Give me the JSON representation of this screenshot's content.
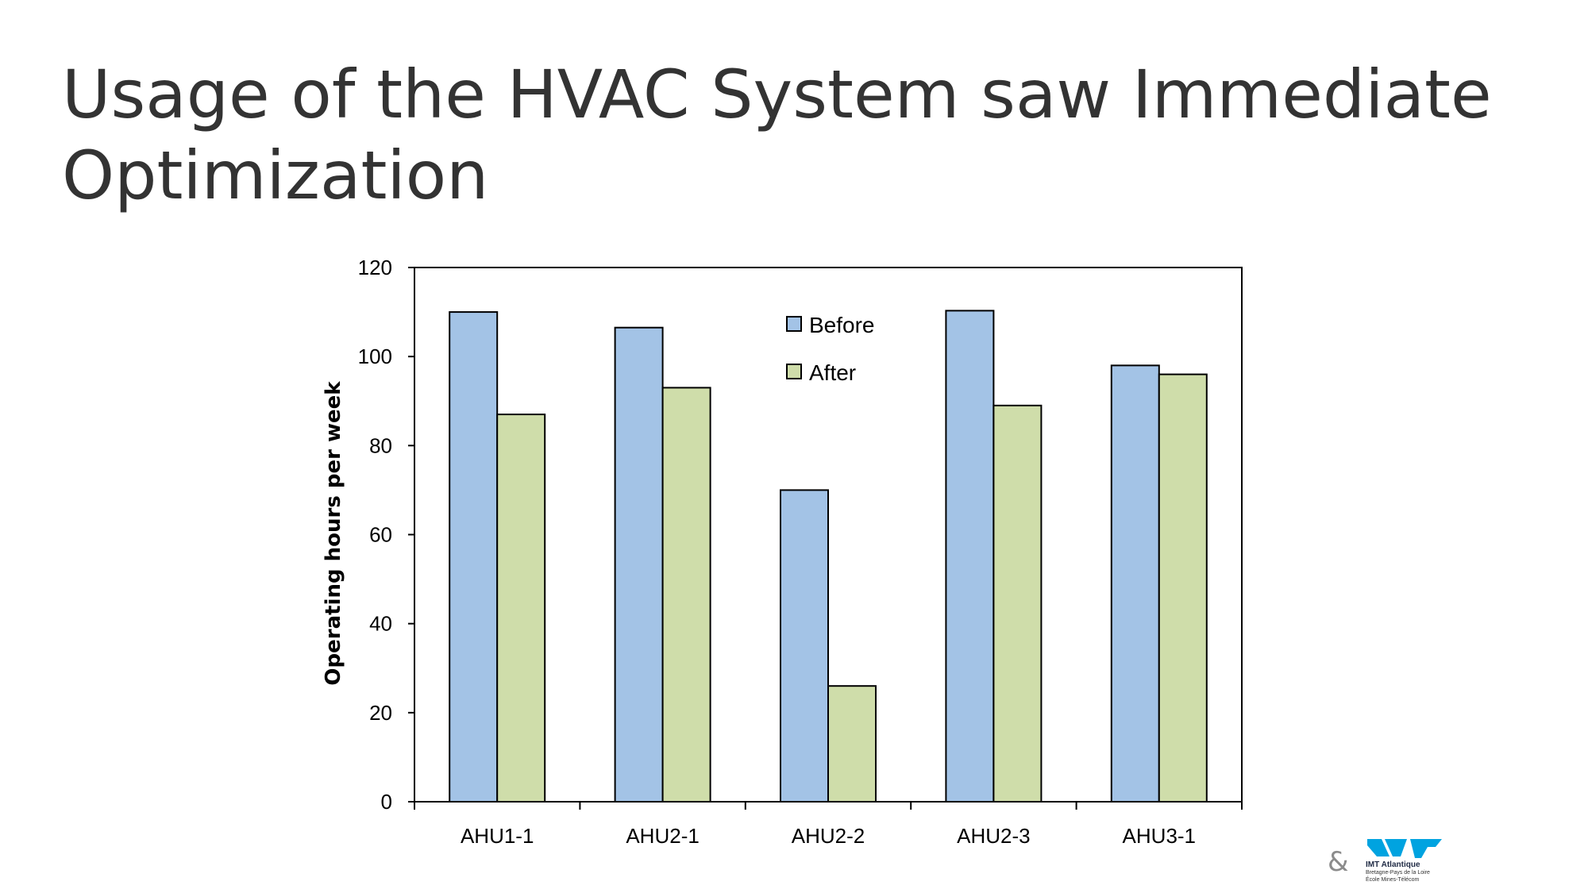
{
  "slide": {
    "title": "Usage of the HVAC System saw Immediate Optimization"
  },
  "chart_data": {
    "type": "bar",
    "categories": [
      "AHU1-1",
      "AHU2-1",
      "AHU2-2",
      "AHU2-3",
      "AHU3-1"
    ],
    "series": [
      {
        "name": "Before",
        "color": "#a3c3e6",
        "values": [
          110,
          106.5,
          70,
          110.3,
          98
        ]
      },
      {
        "name": "After",
        "color": "#cfddaa",
        "values": [
          87,
          93,
          26,
          89,
          96
        ]
      }
    ],
    "ylabel": "Operating hours per week",
    "ylim": [
      0,
      120
    ],
    "yticks": [
      0,
      20,
      40,
      60,
      80,
      100,
      120
    ],
    "grid": false,
    "legend_position": "top-center"
  },
  "footer": {
    "ampersand": "&",
    "logo": {
      "name": "IMT Atlantique",
      "line1": "Bretagne-Pays de la Loire",
      "line2": "École Mines-Télécom",
      "color": "#00a3e0"
    }
  }
}
